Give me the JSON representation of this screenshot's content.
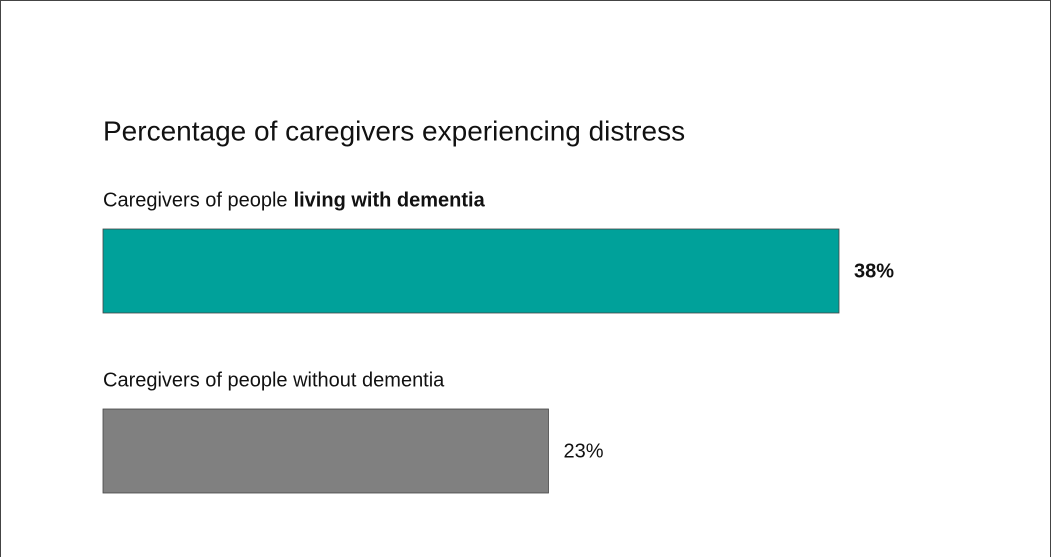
{
  "chart_data": {
    "type": "bar",
    "orientation": "horizontal",
    "title": "Percentage of caregivers experiencing distress",
    "categories": [
      [
        "Caregivers of people",
        "living with dementia"
      ],
      [
        "Caregivers of people without dementia"
      ]
    ],
    "values": [
      38,
      23
    ],
    "value_labels": [
      "38%",
      "23%"
    ],
    "colors": [
      "#00a19a",
      "#808080"
    ],
    "label_colors": [
      "#17907f",
      "#595959"
    ],
    "emphasis": [
      true,
      false
    ]
  }
}
